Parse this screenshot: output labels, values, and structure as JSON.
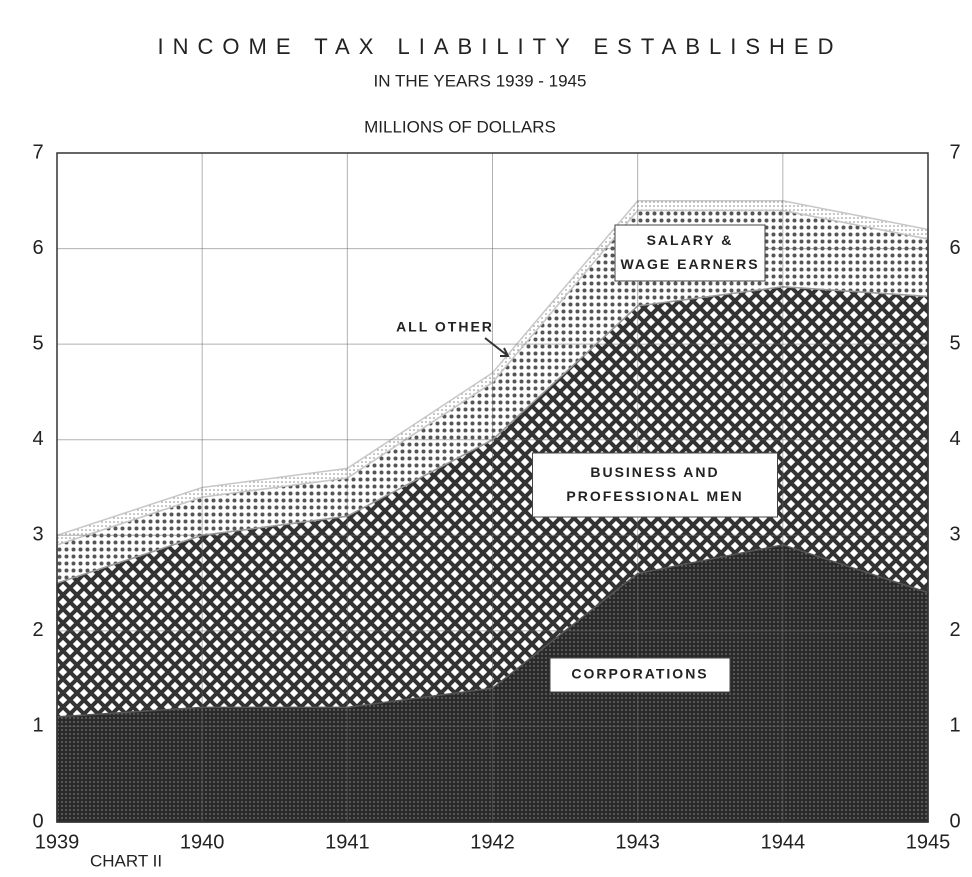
{
  "chart_data": {
    "type": "stacked_area",
    "title": "INCOME TAX LIABILITY ESTABLISHED",
    "subtitle": "IN THE YEARS 1939 - 1945",
    "y_label": "MILLIONS OF DOLLARS",
    "footnote": "CHART II",
    "categories": [
      "1939",
      "1940",
      "1941",
      "1942",
      "1943",
      "1944",
      "1945"
    ],
    "series": [
      {
        "name": "CORPORATIONS",
        "color": "#3a3a3a",
        "values": [
          1.1,
          1.2,
          1.2,
          1.4,
          2.6,
          2.9,
          2.4
        ]
      },
      {
        "name": "BUSINESS AND PROFESSIONAL MEN",
        "color": "#555555",
        "values": [
          1.4,
          1.8,
          2.0,
          2.6,
          2.8,
          2.7,
          3.1
        ]
      },
      {
        "name": "SALARY & WAGE EARNERS",
        "color": "#9a9a9a",
        "values": [
          0.4,
          0.4,
          0.4,
          0.6,
          1.0,
          0.8,
          0.6
        ]
      },
      {
        "name": "ALL OTHER",
        "color": "#c8c8c8",
        "values": [
          0.1,
          0.1,
          0.1,
          0.1,
          0.1,
          0.1,
          0.1
        ]
      }
    ],
    "ylim": [
      0,
      7
    ],
    "yticks": [
      0,
      1,
      2,
      3,
      4,
      5,
      6,
      7
    ],
    "grid": true
  }
}
